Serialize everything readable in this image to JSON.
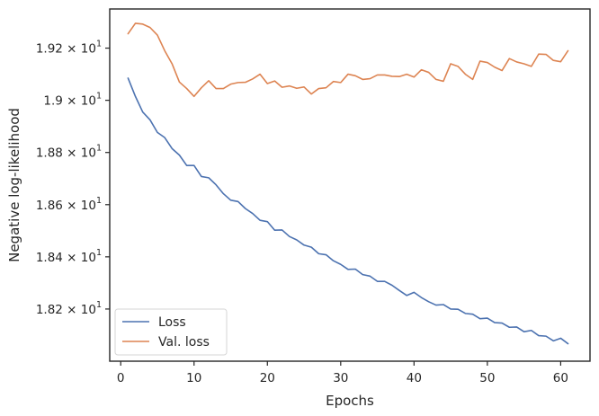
{
  "chart_data": {
    "type": "line",
    "xlabel": "Epochs",
    "ylabel": "Negative log-likelihood",
    "xlim": [
      -1.5,
      64.0
    ],
    "ylim": [
      18.0,
      19.35
    ],
    "grid": false,
    "legend_position": "lower-left",
    "x_ticks": [
      0,
      10,
      20,
      30,
      40,
      50,
      60
    ],
    "x_tick_labels": [
      "0",
      "10",
      "20",
      "30",
      "40",
      "50",
      "60"
    ],
    "y_ticks": [
      18.2,
      18.4,
      18.6,
      18.8,
      19.0,
      19.2
    ],
    "y_tick_labels": [
      {
        "mantissa": "1.82",
        "times": "×",
        "base": "10",
        "exponent": "1"
      },
      {
        "mantissa": "1.84",
        "times": "×",
        "base": "10",
        "exponent": "1"
      },
      {
        "mantissa": "1.86",
        "times": "×",
        "base": "10",
        "exponent": "1"
      },
      {
        "mantissa": "1.88",
        "times": "×",
        "base": "10",
        "exponent": "1"
      },
      {
        "mantissa": "1.9",
        "times": "×",
        "base": "10",
        "exponent": "1"
      },
      {
        "mantissa": "1.92",
        "times": "×",
        "base": "10",
        "exponent": "1"
      }
    ],
    "x": [
      1,
      2,
      3,
      4,
      5,
      6,
      7,
      8,
      9,
      10,
      11,
      12,
      13,
      14,
      15,
      16,
      17,
      18,
      19,
      20,
      21,
      22,
      23,
      24,
      25,
      26,
      27,
      28,
      29,
      30,
      31,
      32,
      33,
      34,
      35,
      36,
      37,
      38,
      39,
      40,
      41,
      42,
      43,
      44,
      45,
      46,
      47,
      48,
      49,
      50,
      51,
      52,
      53,
      54,
      55,
      56,
      57,
      58,
      59,
      60,
      61
    ],
    "series": [
      {
        "name": "Loss",
        "color": "#4c72b0",
        "values": [
          19.085,
          19.015,
          18.955,
          18.925,
          18.877,
          18.857,
          18.815,
          18.79,
          18.75,
          18.75,
          18.708,
          18.703,
          18.676,
          18.642,
          18.617,
          18.612,
          18.585,
          18.566,
          18.54,
          18.535,
          18.502,
          18.503,
          18.478,
          18.465,
          18.445,
          18.437,
          18.412,
          18.408,
          18.385,
          18.371,
          18.352,
          18.353,
          18.332,
          18.326,
          18.306,
          18.306,
          18.291,
          18.271,
          18.252,
          18.264,
          18.244,
          18.228,
          18.215,
          18.217,
          18.2,
          18.199,
          18.183,
          18.18,
          18.163,
          18.165,
          18.148,
          18.146,
          18.13,
          18.131,
          18.113,
          18.118,
          18.098,
          18.096,
          18.078,
          18.088,
          18.067
        ]
      },
      {
        "name": "Val. loss",
        "color": "#dd8452",
        "values": [
          19.255,
          19.295,
          19.292,
          19.279,
          19.25,
          19.19,
          19.14,
          19.07,
          19.045,
          19.015,
          19.048,
          19.075,
          19.045,
          19.045,
          19.062,
          19.068,
          19.069,
          19.082,
          19.1,
          19.064,
          19.074,
          19.05,
          19.055,
          19.046,
          19.051,
          19.024,
          19.045,
          19.048,
          19.072,
          19.068,
          19.1,
          19.094,
          19.08,
          19.083,
          19.097,
          19.097,
          19.092,
          19.091,
          19.1,
          19.089,
          19.117,
          19.107,
          19.08,
          19.073,
          19.14,
          19.13,
          19.1,
          19.08,
          19.15,
          19.145,
          19.127,
          19.114,
          19.16,
          19.147,
          19.14,
          19.13,
          19.177,
          19.176,
          19.153,
          19.148,
          19.19
        ]
      }
    ]
  }
}
